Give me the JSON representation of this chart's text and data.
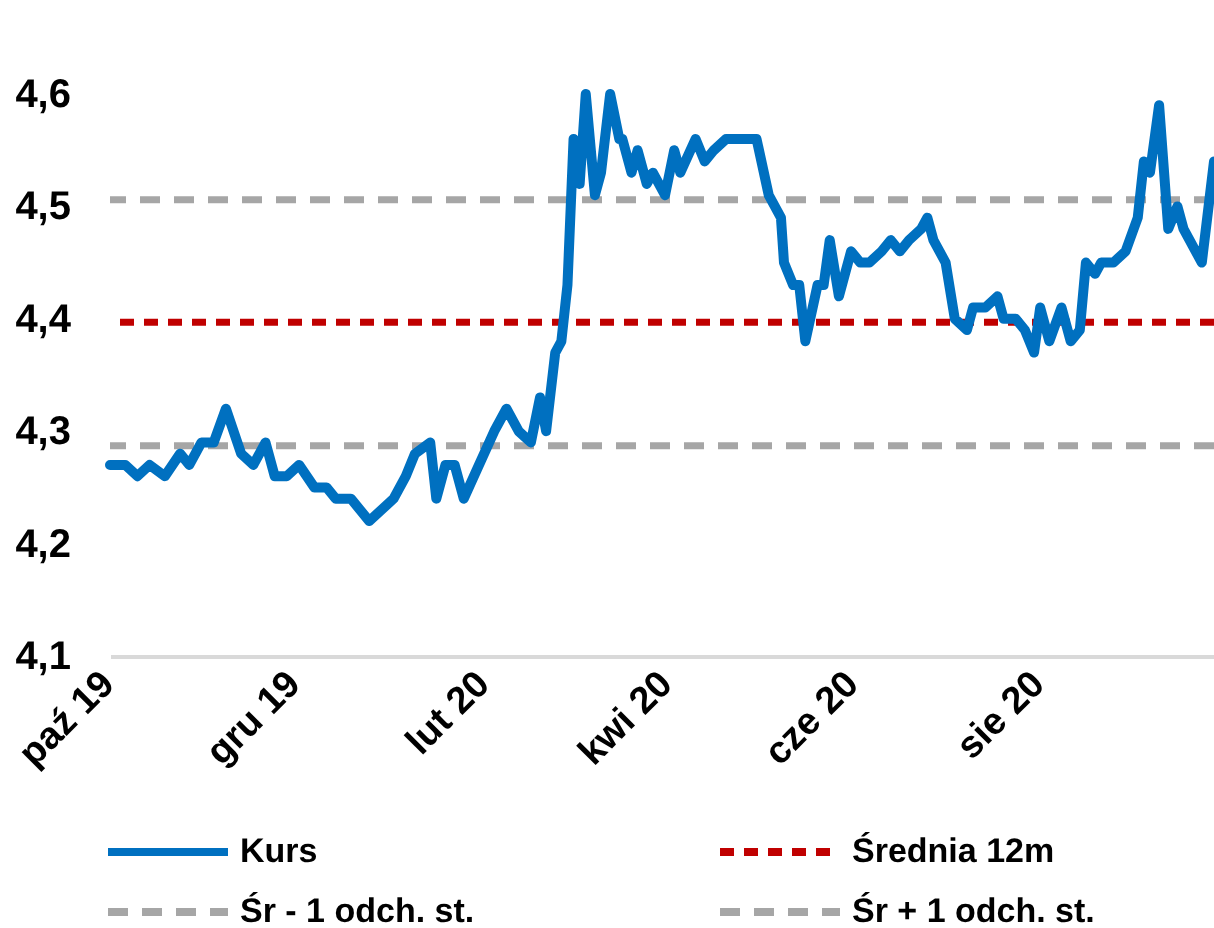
{
  "chart_data": {
    "type": "line",
    "x": [
      "2019-10-01",
      "2019-10-04",
      "2019-10-06",
      "2019-10-10",
      "2019-10-14",
      "2019-10-19",
      "2019-10-24",
      "2019-10-27",
      "2019-10-31",
      "2019-11-04",
      "2019-11-08",
      "2019-11-13",
      "2019-11-17",
      "2019-11-21",
      "2019-11-24",
      "2019-11-28",
      "2019-12-02",
      "2019-12-07",
      "2019-12-11",
      "2019-12-14",
      "2019-12-19",
      "2019-12-22",
      "2019-12-25",
      "2019-12-29",
      "2020-01-02",
      "2020-01-06",
      "2020-01-09",
      "2020-01-14",
      "2020-01-16",
      "2020-01-19",
      "2020-01-22",
      "2020-01-25",
      "2020-01-30",
      "2020-02-04",
      "2020-02-08",
      "2020-02-12",
      "2020-02-16",
      "2020-02-19",
      "2020-02-21",
      "2020-02-24",
      "2020-02-26",
      "2020-02-28",
      "2020-03-01",
      "2020-03-03",
      "2020-03-05",
      "2020-03-08",
      "2020-03-10",
      "2020-03-13",
      "2020-03-16",
      "2020-03-17",
      "2020-03-20",
      "2020-03-22",
      "2020-03-25",
      "2020-03-27",
      "2020-03-31",
      "2020-04-03",
      "2020-04-05",
      "2020-04-10",
      "2020-04-13",
      "2020-04-16",
      "2020-04-20",
      "2020-04-23",
      "2020-04-30",
      "2020-05-04",
      "2020-05-08",
      "2020-05-09",
      "2020-05-12",
      "2020-05-14",
      "2020-05-16",
      "2020-05-20",
      "2020-05-22",
      "2020-05-24",
      "2020-05-27",
      "2020-05-31",
      "2020-06-03",
      "2020-06-06",
      "2020-06-10",
      "2020-06-13",
      "2020-06-16",
      "2020-06-19",
      "2020-06-23",
      "2020-06-25",
      "2020-06-27",
      "2020-07-01",
      "2020-07-04",
      "2020-07-08",
      "2020-07-10",
      "2020-07-14",
      "2020-07-18",
      "2020-07-20",
      "2020-07-24",
      "2020-07-27",
      "2020-07-30",
      "2020-08-01",
      "2020-08-04",
      "2020-08-08",
      "2020-08-11",
      "2020-08-14",
      "2020-08-16",
      "2020-08-19",
      "2020-08-21",
      "2020-08-25",
      "2020-08-29",
      "2020-09-02",
      "2020-09-04",
      "2020-09-06",
      "2020-09-09",
      "2020-09-12",
      "2020-09-15",
      "2020-09-17",
      "2020-09-21",
      "2020-09-23",
      "2020-09-27"
    ],
    "series": [
      {
        "name": "Kurs",
        "color": "#0070c0",
        "values": [
          4.27,
          4.27,
          4.27,
          4.26,
          4.27,
          4.26,
          4.28,
          4.27,
          4.29,
          4.29,
          4.32,
          4.28,
          4.27,
          4.29,
          4.26,
          4.26,
          4.27,
          4.25,
          4.25,
          4.24,
          4.24,
          4.23,
          4.22,
          4.23,
          4.24,
          4.26,
          4.28,
          4.29,
          4.24,
          4.27,
          4.27,
          4.24,
          4.27,
          4.3,
          4.32,
          4.3,
          4.29,
          4.33,
          4.3,
          4.37,
          4.38,
          4.43,
          4.56,
          4.52,
          4.6,
          4.51,
          4.53,
          4.6,
          4.56,
          4.56,
          4.53,
          4.55,
          4.52,
          4.53,
          4.51,
          4.55,
          4.53,
          4.56,
          4.54,
          4.55,
          4.56,
          4.56,
          4.56,
          4.51,
          4.49,
          4.45,
          4.43,
          4.43,
          4.38,
          4.43,
          4.43,
          4.47,
          4.42,
          4.46,
          4.45,
          4.45,
          4.46,
          4.47,
          4.46,
          4.47,
          4.48,
          4.49,
          4.47,
          4.45,
          4.4,
          4.39,
          4.41,
          4.41,
          4.42,
          4.4,
          4.4,
          4.39,
          4.37,
          4.41,
          4.38,
          4.41,
          4.38,
          4.39,
          4.45,
          4.44,
          4.45,
          4.45,
          4.46,
          4.49,
          4.54,
          4.53,
          4.59,
          4.48,
          4.5,
          4.48,
          4.46,
          4.45,
          4.54
        ]
      }
    ],
    "ref_lines": [
      {
        "axis": "y",
        "value": 4.397,
        "label": "Średnia 12m",
        "color": "#c00000",
        "line_style": "dashed"
      },
      {
        "axis": "y",
        "value": 4.287,
        "label": "Śr - 1 odch. st.",
        "color": "#a6a6a6",
        "line_style": "dashed"
      },
      {
        "axis": "y",
        "value": 4.506,
        "label": "Śr + 1 odch. st.",
        "color": "#a6a6a6",
        "line_style": "dashed"
      }
    ],
    "xlim": [
      "2019-10-01",
      "2020-09-27"
    ],
    "xticks": [
      {
        "value": "2019-10-01",
        "label": "paź 19"
      },
      {
        "value": "2019-12-01",
        "label": "gru 19"
      },
      {
        "value": "2020-02-01",
        "label": "lut 20"
      },
      {
        "value": "2020-04-01",
        "label": "kwi 20"
      },
      {
        "value": "2020-06-01",
        "label": "cze 20"
      },
      {
        "value": "2020-08-01",
        "label": "sie 20"
      }
    ],
    "ylim": [
      4.1,
      4.6
    ],
    "yticks": [
      {
        "value": 4.1,
        "label": "4,1"
      },
      {
        "value": 4.2,
        "label": "4,2"
      },
      {
        "value": 4.3,
        "label": "4,3"
      },
      {
        "value": 4.4,
        "label": "4,4"
      },
      {
        "value": 4.5,
        "label": "4,5"
      },
      {
        "value": 4.6,
        "label": "4,6"
      }
    ],
    "legend": "bottom",
    "line_style": "solid",
    "marker": "none"
  }
}
